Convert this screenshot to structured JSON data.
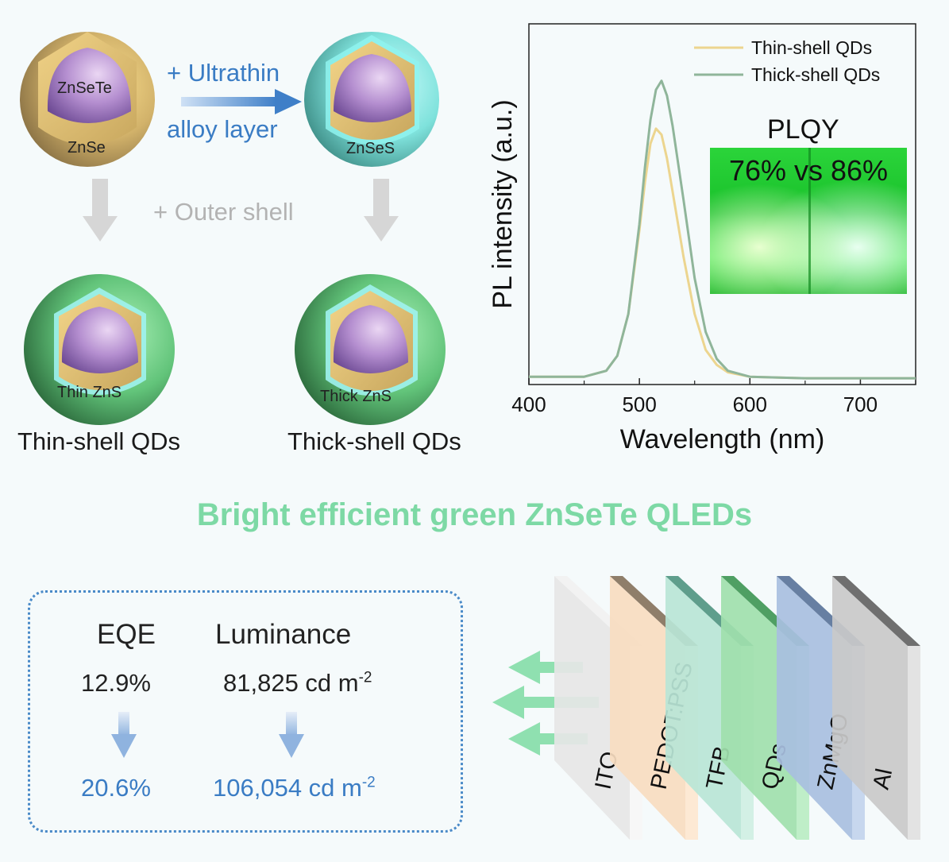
{
  "schematic": {
    "core_label": "ZnSeTe",
    "znse_label": "ZnSe",
    "znses_label": "ZnSeS",
    "step1_line1": "+ Ultrathin",
    "step1_line2": "alloy layer",
    "step2_label": "+ Outer shell",
    "thin_zns_label": "Thin ZnS",
    "thick_zns_label": "Thick ZnS",
    "thin_caption": "Thin-shell QDs",
    "thick_caption": "Thick-shell QDs"
  },
  "plqy": {
    "title": "PLQY",
    "comparison": "76% vs 86%"
  },
  "chart_data": {
    "type": "line",
    "xlabel": "Wavelength (nm)",
    "ylabel": "PL intensity (a.u.)",
    "xlim": [
      400,
      750
    ],
    "xticks": [
      400,
      500,
      600,
      700
    ],
    "legend_position": "top-right",
    "series": [
      {
        "name": "Thin-shell QDs",
        "color": "#ecd58f",
        "x": [
          400,
          450,
          470,
          480,
          490,
          500,
          505,
          510,
          515,
          520,
          525,
          530,
          540,
          550,
          560,
          570,
          580,
          600,
          650,
          700,
          750
        ],
        "y": [
          0.01,
          0.01,
          0.03,
          0.08,
          0.22,
          0.5,
          0.66,
          0.79,
          0.84,
          0.82,
          0.74,
          0.63,
          0.41,
          0.22,
          0.1,
          0.05,
          0.025,
          0.01,
          0.005,
          0.005,
          0.005
        ]
      },
      {
        "name": "Thick-shell QDs",
        "color": "#8fb59a",
        "x": [
          400,
          450,
          470,
          480,
          490,
          500,
          505,
          510,
          515,
          520,
          525,
          530,
          540,
          550,
          560,
          570,
          580,
          600,
          650,
          700,
          750
        ],
        "y": [
          0.01,
          0.01,
          0.03,
          0.08,
          0.22,
          0.52,
          0.71,
          0.87,
          0.97,
          1.0,
          0.95,
          0.85,
          0.6,
          0.34,
          0.16,
          0.07,
          0.03,
          0.01,
          0.005,
          0.005,
          0.005
        ]
      }
    ]
  },
  "headline": "Bright efficient green ZnSeTe QLEDs",
  "metrics": {
    "eqe_label": "EQE",
    "lum_label": "Luminance",
    "eqe_old": "12.9%",
    "lum_old": "81,825 cd m",
    "lum_old_sup": "-2",
    "eqe_new": "20.6%",
    "lum_new": "106,054 cd m",
    "lum_new_sup": "-2"
  },
  "device_layers": [
    "ITO",
    "PEDOT:PSS",
    "TFB",
    "QDs",
    "ZnMgO",
    "Al"
  ],
  "colors": {
    "headline_green": "#7dd9a5",
    "accent_blue": "#3a7cc4",
    "arrow_grey": "#d6d6d6",
    "arrow_green": "#8fe0b0"
  }
}
